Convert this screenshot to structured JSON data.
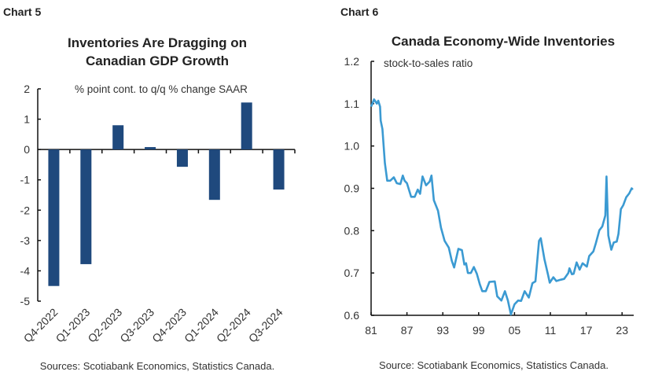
{
  "chart_data": [
    {
      "type": "bar",
      "header": "Chart 5",
      "title": [
        "Inventories Are Dragging on",
        "Canadian GDP Growth"
      ],
      "ylabel": "% point cont. to q/q % change SAAR",
      "categories": [
        "Q4-2022",
        "Q1-2023",
        "Q2-2023",
        "Q3-2023",
        "Q4-2023",
        "Q1-2024",
        "Q2-2024",
        "Q3-2024"
      ],
      "values": [
        -4.5,
        -3.78,
        0.8,
        0.08,
        -0.57,
        -1.66,
        1.55,
        -1.32
      ],
      "ylim": [
        -5,
        2
      ],
      "yticks": [
        2,
        1,
        0,
        -1,
        -2,
        -3,
        -4,
        -5
      ],
      "color": "#1f497d",
      "grid": false,
      "source": "Sources: Scotiabank Economics, Statistics Canada."
    },
    {
      "type": "line",
      "header": "Chart 6",
      "title": "Canada Economy-Wide Inventories",
      "ylabel": "stock-to-sales ratio",
      "ylim": [
        0.6,
        1.2
      ],
      "yticks": [
        "0.6",
        "0.7",
        "0.8",
        "0.9",
        "1.0",
        "1.1",
        "1.2"
      ],
      "xticks": [
        {
          "value": 1981,
          "label": "81"
        },
        {
          "value": 1987,
          "label": "87"
        },
        {
          "value": 1993,
          "label": "93"
        },
        {
          "value": 1999,
          "label": "99"
        },
        {
          "value": 2005,
          "label": "05"
        },
        {
          "value": 2011,
          "label": "11"
        },
        {
          "value": 2017,
          "label": "17"
        },
        {
          "value": 2023,
          "label": "23"
        }
      ],
      "color": "#3b9ad2",
      "grid": false,
      "source": "Source: Scotiabank Economics, Statistics Canada.",
      "x": [
        1981.0,
        1981.5,
        1981.96,
        1982.2,
        1982.5,
        1982.6,
        1982.9,
        1983.3,
        1983.7,
        1984.2,
        1984.8,
        1985.3,
        1985.9,
        1986.3,
        1986.6,
        1987.0,
        1987.7,
        1988.3,
        1988.8,
        1989.2,
        1989.6,
        1990.2,
        1990.8,
        1991.1,
        1991.5,
        1992.2,
        1992.7,
        1993.3,
        1994.0,
        1994.5,
        1994.9,
        1995.6,
        1996.2,
        1996.6,
        1996.9,
        1997.2,
        1997.7,
        1998.2,
        1998.7,
        1999.2,
        1999.6,
        2000.2,
        2000.8,
        2001.7,
        2002.1,
        2002.8,
        2003.4,
        2003.9,
        2004.4,
        2005.0,
        2005.6,
        2006.1,
        2006.7,
        2007.4,
        2008.0,
        2008.5,
        2009.1,
        2009.4,
        2010.0,
        2010.6,
        2010.9,
        2011.5,
        2012.0,
        2012.7,
        2013.3,
        2014.0,
        2014.2,
        2014.6,
        2014.9,
        2015.4,
        2015.9,
        2016.4,
        2017.1,
        2017.5,
        2018.2,
        2018.6,
        2019.2,
        2019.7,
        2020.2,
        2020.4,
        2020.7,
        2021.2,
        2021.6,
        2022.1,
        2022.4,
        2022.8,
        2023.2,
        2023.7,
        2024.2,
        2024.6,
        2024.8
      ],
      "y": [
        1.093,
        1.11,
        1.1,
        1.107,
        1.093,
        1.06,
        1.04,
        0.96,
        0.918,
        0.918,
        0.926,
        0.912,
        0.91,
        0.93,
        0.918,
        0.912,
        0.88,
        0.88,
        0.897,
        0.887,
        0.928,
        0.907,
        0.916,
        0.93,
        0.872,
        0.847,
        0.807,
        0.776,
        0.76,
        0.729,
        0.713,
        0.757,
        0.754,
        0.72,
        0.723,
        0.7,
        0.7,
        0.714,
        0.698,
        0.673,
        0.657,
        0.657,
        0.679,
        0.68,
        0.645,
        0.635,
        0.657,
        0.635,
        0.602,
        0.626,
        0.635,
        0.634,
        0.657,
        0.642,
        0.676,
        0.68,
        0.776,
        0.782,
        0.733,
        0.696,
        0.677,
        0.69,
        0.681,
        0.684,
        0.686,
        0.7,
        0.711,
        0.697,
        0.698,
        0.725,
        0.708,
        0.723,
        0.715,
        0.74,
        0.751,
        0.77,
        0.801,
        0.81,
        0.836,
        0.928,
        0.789,
        0.755,
        0.772,
        0.774,
        0.792,
        0.851,
        0.86,
        0.879,
        0.888,
        0.9,
        0.897
      ]
    }
  ]
}
